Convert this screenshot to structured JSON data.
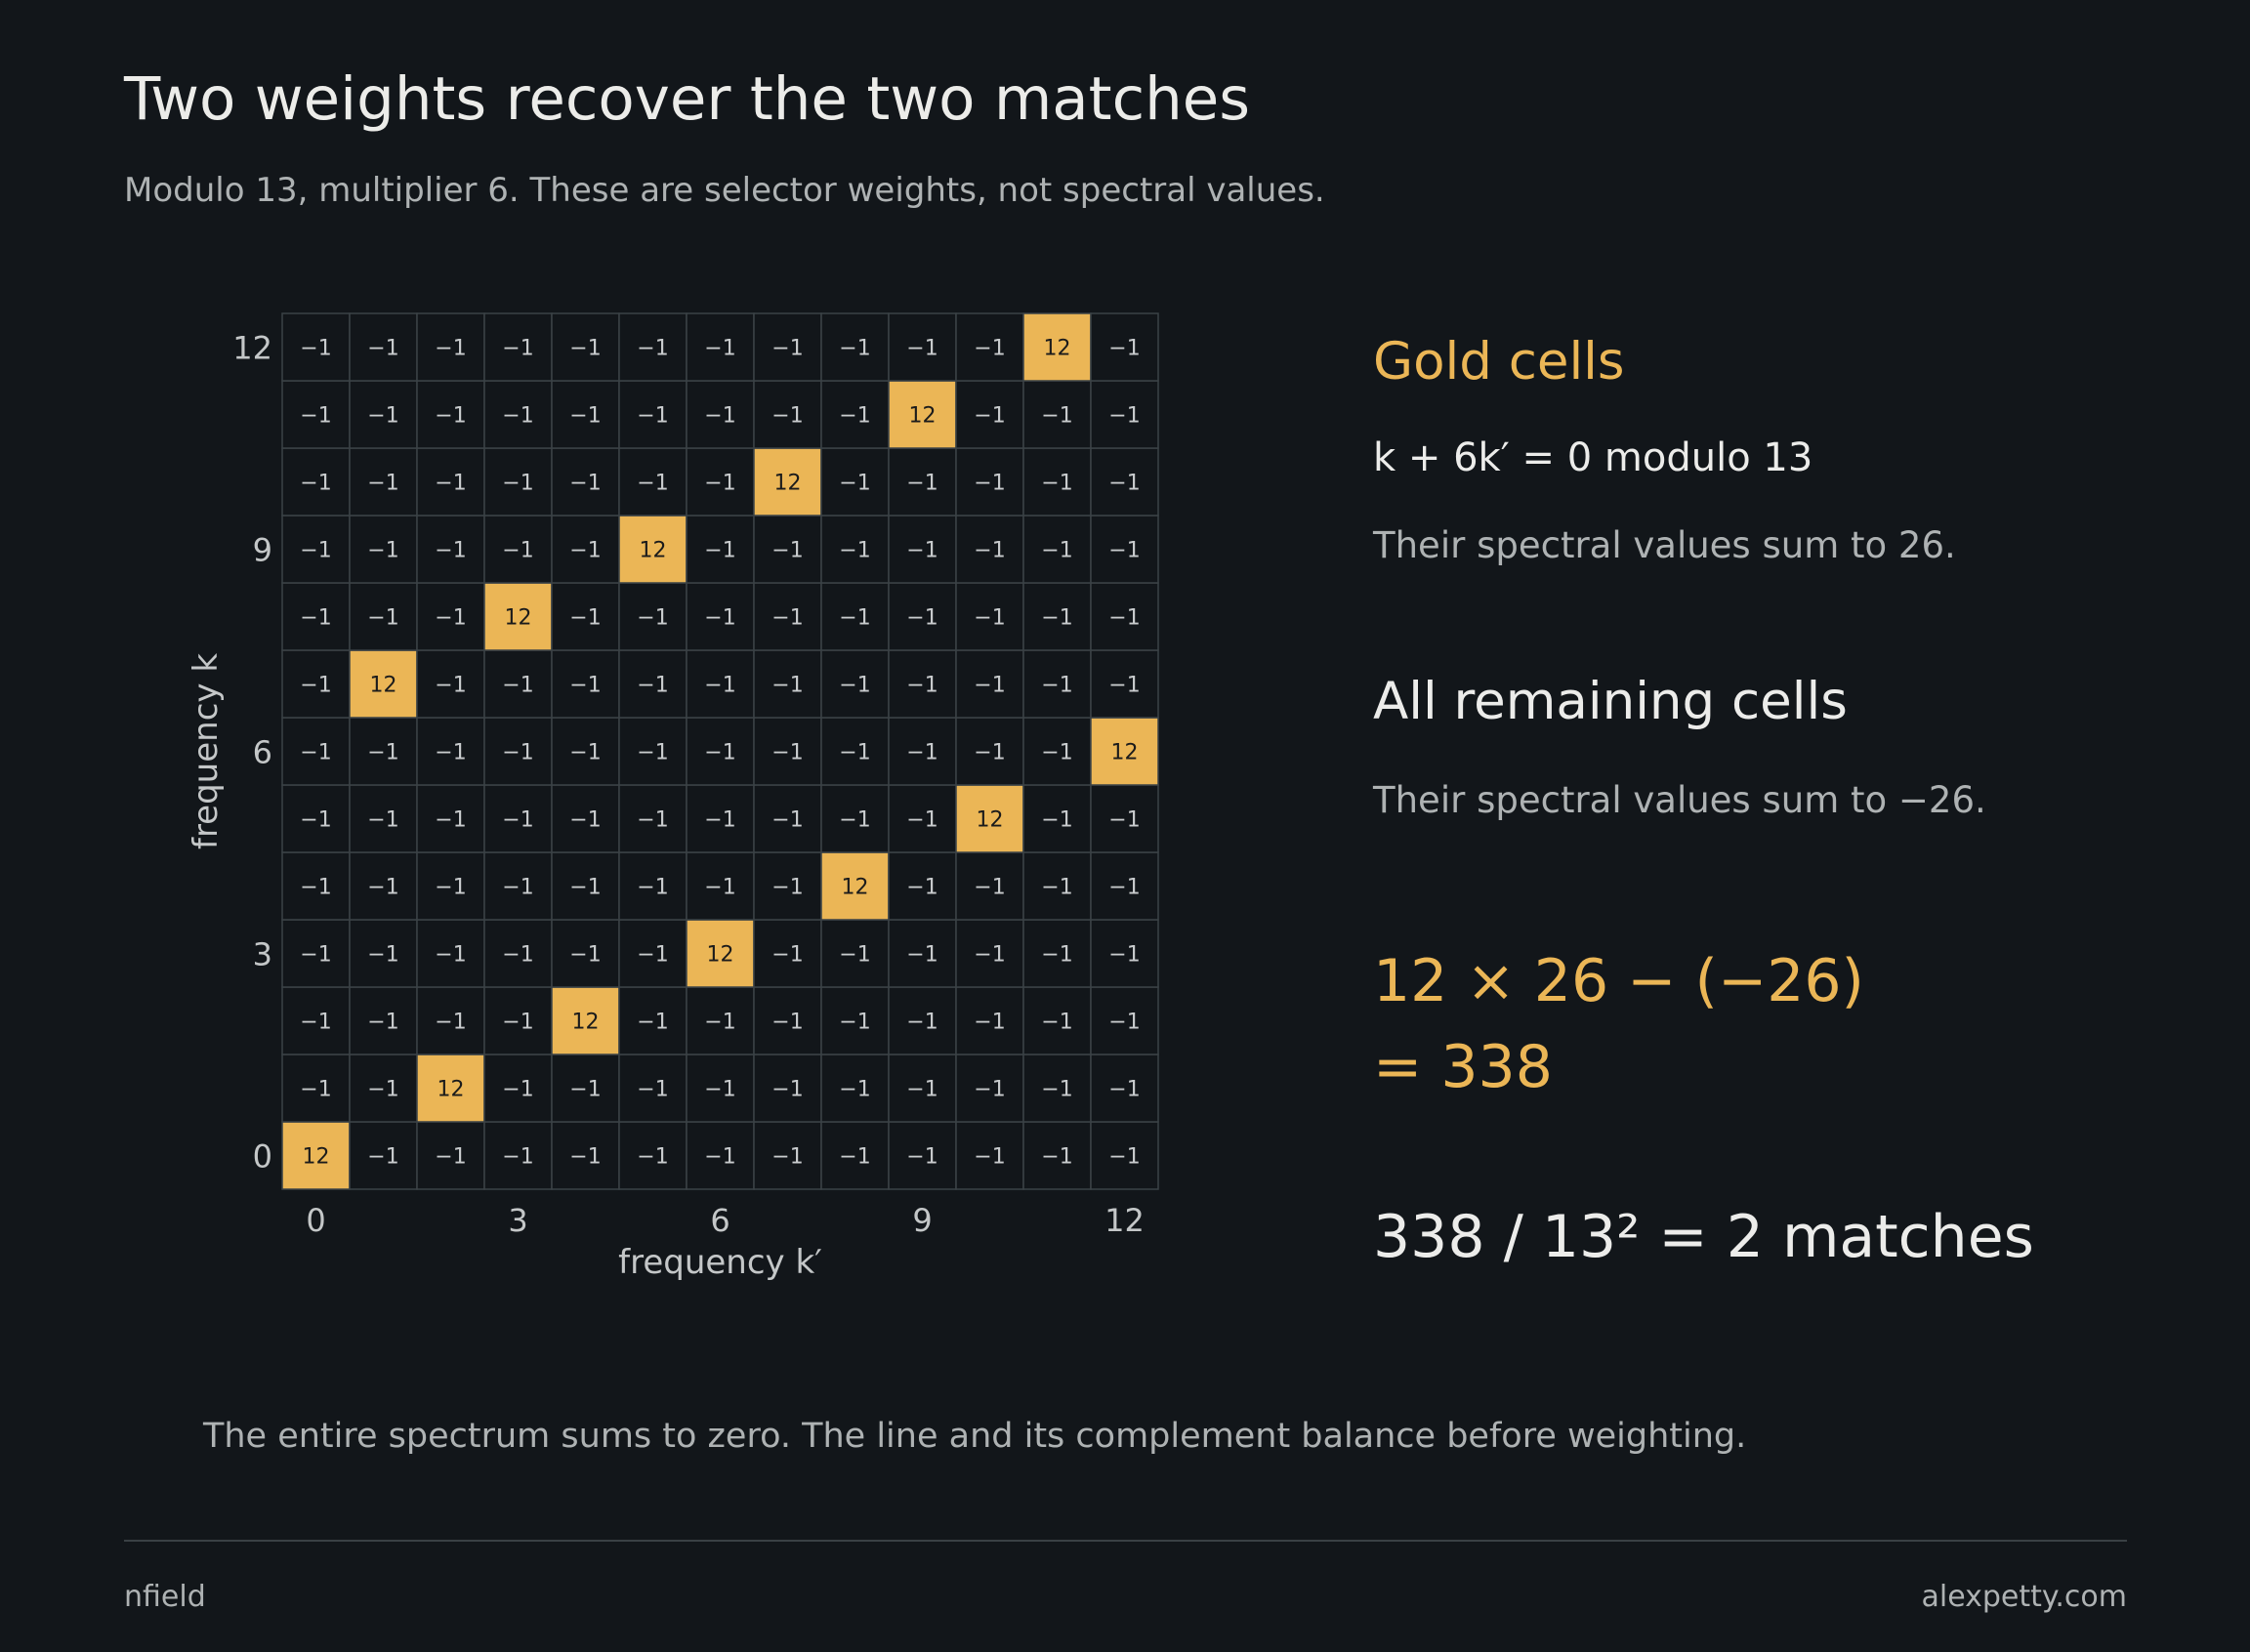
{
  "header": {
    "title": "Two weights recover the two matches",
    "subtitle": "Modulo 13, multiplier 6. These are selector weights, not spectral values."
  },
  "chart_data": {
    "type": "heatmap",
    "modulus": 13,
    "multiplier": 6,
    "xlabel": "frequency k′",
    "ylabel": "frequency k",
    "x_ticks": [
      0,
      3,
      6,
      9,
      12
    ],
    "y_ticks": [
      0,
      3,
      6,
      9,
      12
    ],
    "xlim": [
      0,
      12
    ],
    "ylim": [
      0,
      12
    ],
    "gold_value": 12,
    "other_value": -1,
    "other_label": "−1",
    "gold_cells_k_prime_by_k": [
      0,
      2,
      4,
      6,
      8,
      10,
      12,
      1,
      3,
      5,
      7,
      9,
      11
    ],
    "colors": {
      "gold": "#ebb656",
      "cell": "#12161a",
      "grid": "#3b4246",
      "text_light": "#c9ccce",
      "text_dark": "#1b1b1b"
    }
  },
  "panel": {
    "gold_heading": "Gold cells",
    "gold_equation": "k + 6k′ = 0 modulo 13",
    "gold_note": "Their spectral values sum to 26.",
    "remaining_heading": "All remaining cells",
    "remaining_note": "Their spectral values sum to −26.",
    "calc_line1": "12 × 26 − (−26)",
    "calc_line2": "= 338",
    "result": "338 / 13² = 2 matches"
  },
  "footnote": "The entire spectrum sums to zero. The line and its complement balance before weighting.",
  "footer": {
    "left": "nfield",
    "right": "alexpetty.com"
  }
}
